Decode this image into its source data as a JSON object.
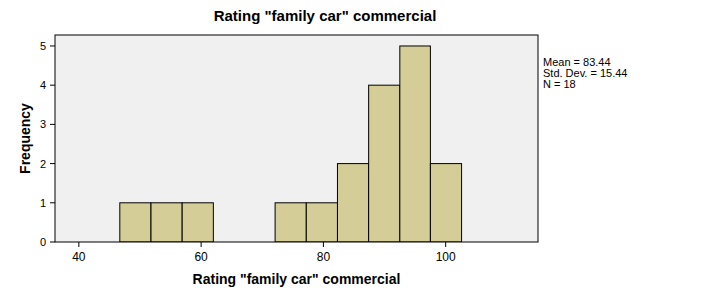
{
  "chart_data": {
    "type": "histogram",
    "title": "Rating \"family car\" commercial",
    "x_label": "Rating \"family car\" commercial",
    "y_label": "Frequency",
    "bins": [
      46.7,
      51.8,
      56.9,
      62.0,
      67.0,
      72.1,
      77.2,
      82.3,
      87.4,
      92.5,
      97.5,
      102.6
    ],
    "values": [
      1,
      1,
      1,
      0,
      0,
      1,
      1,
      2,
      4,
      5,
      2
    ],
    "color": "#d4cd97",
    "xlim": [
      36.1,
      115.1
    ],
    "xticks": [
      40,
      60,
      80,
      100
    ],
    "ylim": [
      0,
      5.28
    ],
    "yticks": [
      0,
      1,
      2,
      3,
      4,
      5
    ],
    "grid": false,
    "annotations": [
      "Mean = 83.44",
      "Std. Dev. = 15.44",
      "N = 18"
    ]
  }
}
